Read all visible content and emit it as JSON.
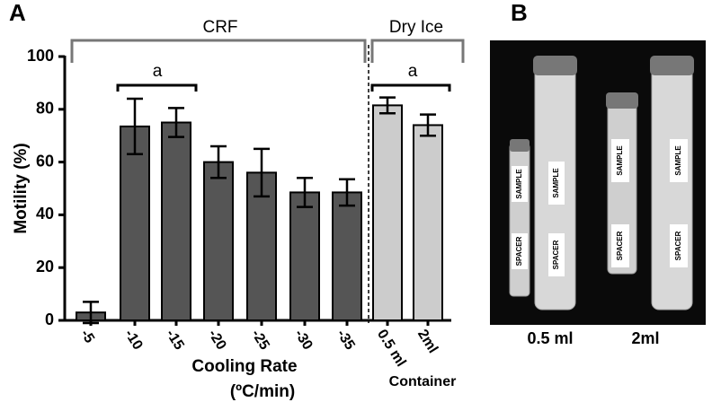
{
  "panel_labels": [
    "A",
    "B"
  ],
  "chart_data": {
    "type": "bar",
    "ylabel": "Motility (%)",
    "xlabel": [
      "Cooling Rate",
      "(ºC/min)"
    ],
    "xlabel2": "Container",
    "annotations": [
      "CRF",
      "Dry Ice",
      "a",
      "a"
    ],
    "categories": [
      "-5",
      "-10",
      "-15",
      "-20",
      "-25",
      "-30",
      "-35",
      "0.5 ml",
      "2ml"
    ],
    "values": [
      3,
      73.5,
      75,
      60,
      56,
      48.5,
      48.5,
      81.5,
      74
    ],
    "errors": [
      4,
      10.5,
      5.5,
      6,
      9,
      5.5,
      5,
      3,
      4
    ],
    "colors": [
      "#555555",
      "#555555",
      "#555555",
      "#555555",
      "#555555",
      "#555555",
      "#555555",
      "#cccccc",
      "#cccccc"
    ],
    "ylim": [
      0,
      100
    ],
    "yticks": [
      0,
      20,
      40,
      60,
      80,
      100
    ]
  },
  "photo": {
    "captions": [
      "0.5 ml",
      "2ml"
    ],
    "tube_labels": [
      "SAMPLE",
      "SPACER"
    ]
  }
}
